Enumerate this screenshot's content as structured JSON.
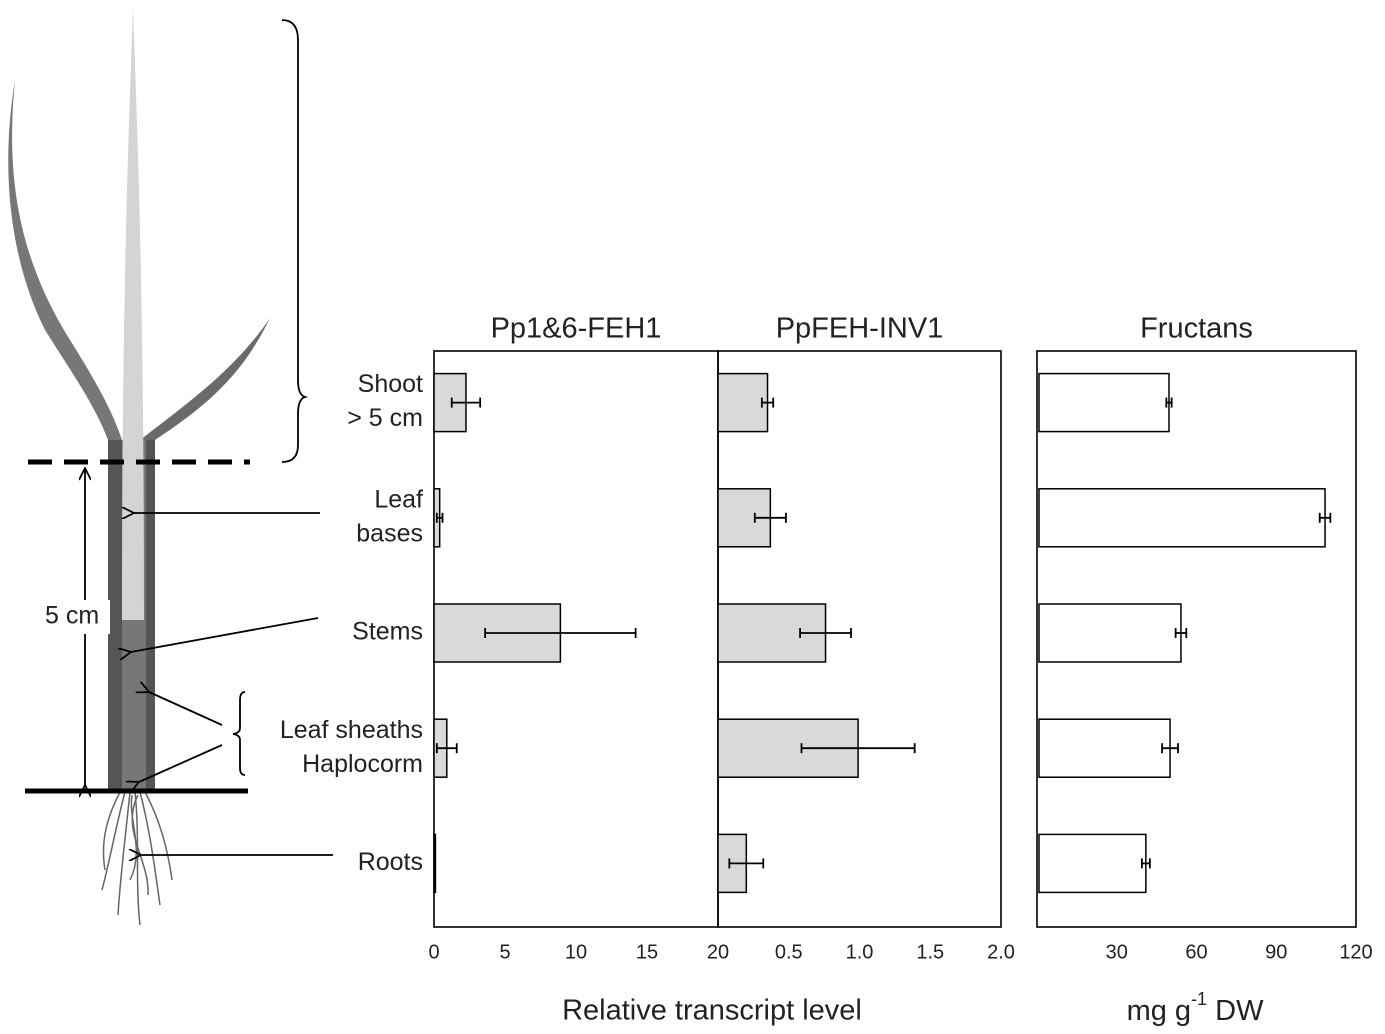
{
  "diagram": {
    "scale_label": "5 cm"
  },
  "chart_data": [
    {
      "type": "bar",
      "orientation": "horizontal",
      "title": "Pp1&6-FEH1",
      "categories": [
        [
          "Shoot",
          "> 5 cm"
        ],
        [
          "Leaf",
          "bases"
        ],
        [
          "Stems"
        ],
        [
          "Leaf sheaths",
          "Haplocorm"
        ],
        [
          "Roots"
        ]
      ],
      "values": [
        2.25,
        0.4,
        8.9,
        0.9,
        0.1
      ],
      "errors": [
        1.0,
        0.2,
        5.3,
        0.7,
        0
      ],
      "color": "#d9d9d9",
      "xlim": [
        0,
        20
      ],
      "xticks": [
        0,
        5,
        10,
        15,
        20
      ],
      "xlabel": "Relative transcript level"
    },
    {
      "type": "bar",
      "orientation": "horizontal",
      "title": "PpFEH-INV1",
      "values": [
        0.35,
        0.37,
        0.76,
        0.99,
        0.2
      ],
      "errors": [
        0.04,
        0.11,
        0.18,
        0.4,
        0.12
      ],
      "color": "#d9d9d9",
      "xlim": [
        0,
        2
      ],
      "xticks": [
        0.5,
        {
          "value": 1,
          "label": "1.0"
        },
        1.5,
        {
          "value": 2,
          "label": "2.0"
        }
      ]
    },
    {
      "type": "bar",
      "orientation": "horizontal",
      "title": "Fructans",
      "values": [
        48.9,
        107.6,
        53.4,
        49.3,
        40.2
      ],
      "errors": [
        1,
        2,
        2,
        3,
        1.5
      ],
      "color": "#ffffff",
      "xlim": [
        0,
        120
      ],
      "xticks": [
        30,
        60,
        90,
        120
      ],
      "xlabel": [
        "mg g",
        "-1",
        " DW"
      ]
    }
  ]
}
